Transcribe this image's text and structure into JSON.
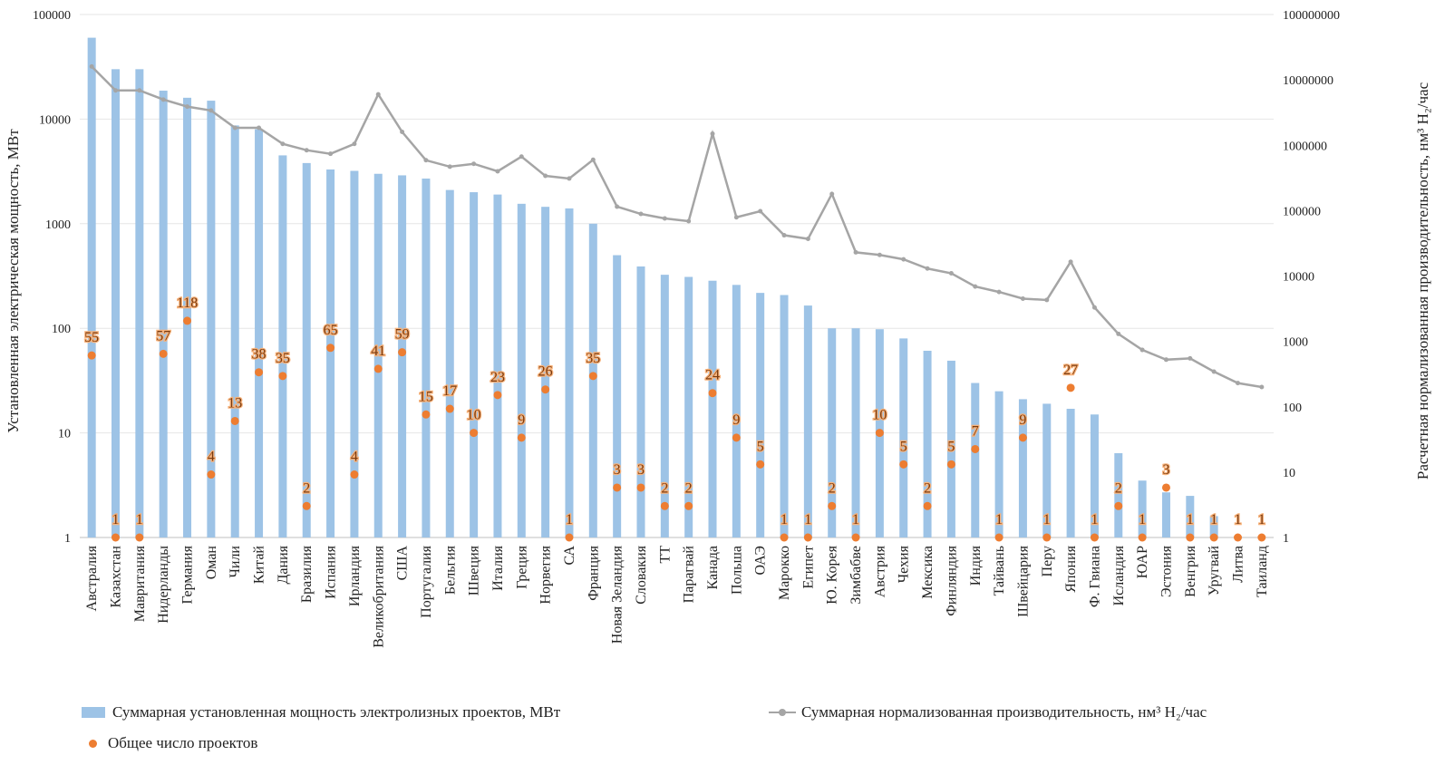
{
  "chart_data": {
    "type": "bar",
    "categories": [
      "Австралия",
      "Казахстан",
      "Мавритания",
      "Нидерланды",
      "Германия",
      "Оман",
      "Чили",
      "Китай",
      "Дания",
      "Бразилия",
      "Испания",
      "Ирландия",
      "Великобритания",
      "США",
      "Португалия",
      "Бельгия",
      "Швеция",
      "Италия",
      "Греция",
      "Норвегия",
      "СА",
      "Франция",
      "Новая Зеландия",
      "Словакия",
      "ТТ",
      "Парагвай",
      "Канада",
      "Польша",
      "ОАЭ",
      "Марокко",
      "Египет",
      "Ю. Корея",
      "Зимбабве",
      "Австрия",
      "Чехия",
      "Мексика",
      "Финляндия",
      "Индия",
      "Тайвань",
      "Швейцария",
      "Перу",
      "Япония",
      "Ф. Гвиана",
      "Исландия",
      "ЮАР",
      "Эстония",
      "Венгрия",
      "Уругвай",
      "Литва",
      "Таиланд"
    ],
    "series": [
      {
        "name": "Суммарная установленная мощность электролизных проектов, МВт",
        "type": "bar",
        "axis": "left",
        "color": "#9dc3e6",
        "values": [
          60000,
          30000,
          30000,
          18700,
          16000,
          15000,
          8700,
          8000,
          4500,
          3800,
          3300,
          3200,
          3000,
          2900,
          2700,
          2100,
          2000,
          1900,
          1550,
          1450,
          1400,
          1000,
          500,
          390,
          325,
          310,
          285,
          260,
          218,
          208,
          165,
          100,
          100,
          98,
          80,
          61,
          49,
          30,
          25,
          21,
          19,
          17,
          15,
          6.4,
          3.5,
          2.7,
          2.5,
          1.6,
          1,
          1
        ]
      },
      {
        "name": "Суммарная нормализованная производительность, нм³ H₂/час",
        "type": "line",
        "axis": "right",
        "color": "#a5a5a5",
        "values": [
          16000000,
          6900000,
          6900000,
          5000000,
          3900000,
          3400000,
          1850000,
          1850000,
          1050000,
          840000,
          740000,
          1050000,
          6000000,
          1600000,
          590000,
          470000,
          520000,
          400000,
          670000,
          340000,
          310000,
          600000,
          115000,
          89000,
          76000,
          69000,
          1500000,
          79000,
          98000,
          42000,
          37000,
          180000,
          23000,
          21000,
          18000,
          13000,
          11000,
          6900,
          5700,
          4500,
          4300,
          16500,
          3300,
          1300,
          740,
          525,
          550,
          345,
          230,
          200
        ]
      },
      {
        "name": "Общее число проектов",
        "type": "scatter",
        "axis": "left",
        "color": "#ed7d31",
        "values": [
          55,
          1,
          1,
          57,
          118,
          4,
          13,
          38,
          35,
          2,
          65,
          4,
          41,
          59,
          15,
          17,
          10,
          23,
          9,
          26,
          1,
          35,
          3,
          3,
          2,
          2,
          24,
          9,
          5,
          1,
          1,
          2,
          1,
          10,
          5,
          2,
          5,
          7,
          1,
          9,
          1,
          27,
          1,
          2,
          1,
          3,
          1,
          1,
          1,
          1
        ]
      }
    ],
    "ylabel": "Установленная электрическая мощность, МВт",
    "y2label": "Расчетная нормализованная производительность, нм³ H₂/час",
    "yscale": "log",
    "ylim": [
      1,
      100000
    ],
    "y2scale": "log",
    "y2lim": [
      1,
      100000000
    ],
    "yticks": [
      "1",
      "10",
      "100",
      "1000",
      "10000",
      "100000"
    ],
    "y2ticks": [
      "1",
      "10",
      "100",
      "1000",
      "10000",
      "100000",
      "1000000",
      "10000000",
      "100000000"
    ],
    "grid": true,
    "legend": "bottom"
  }
}
